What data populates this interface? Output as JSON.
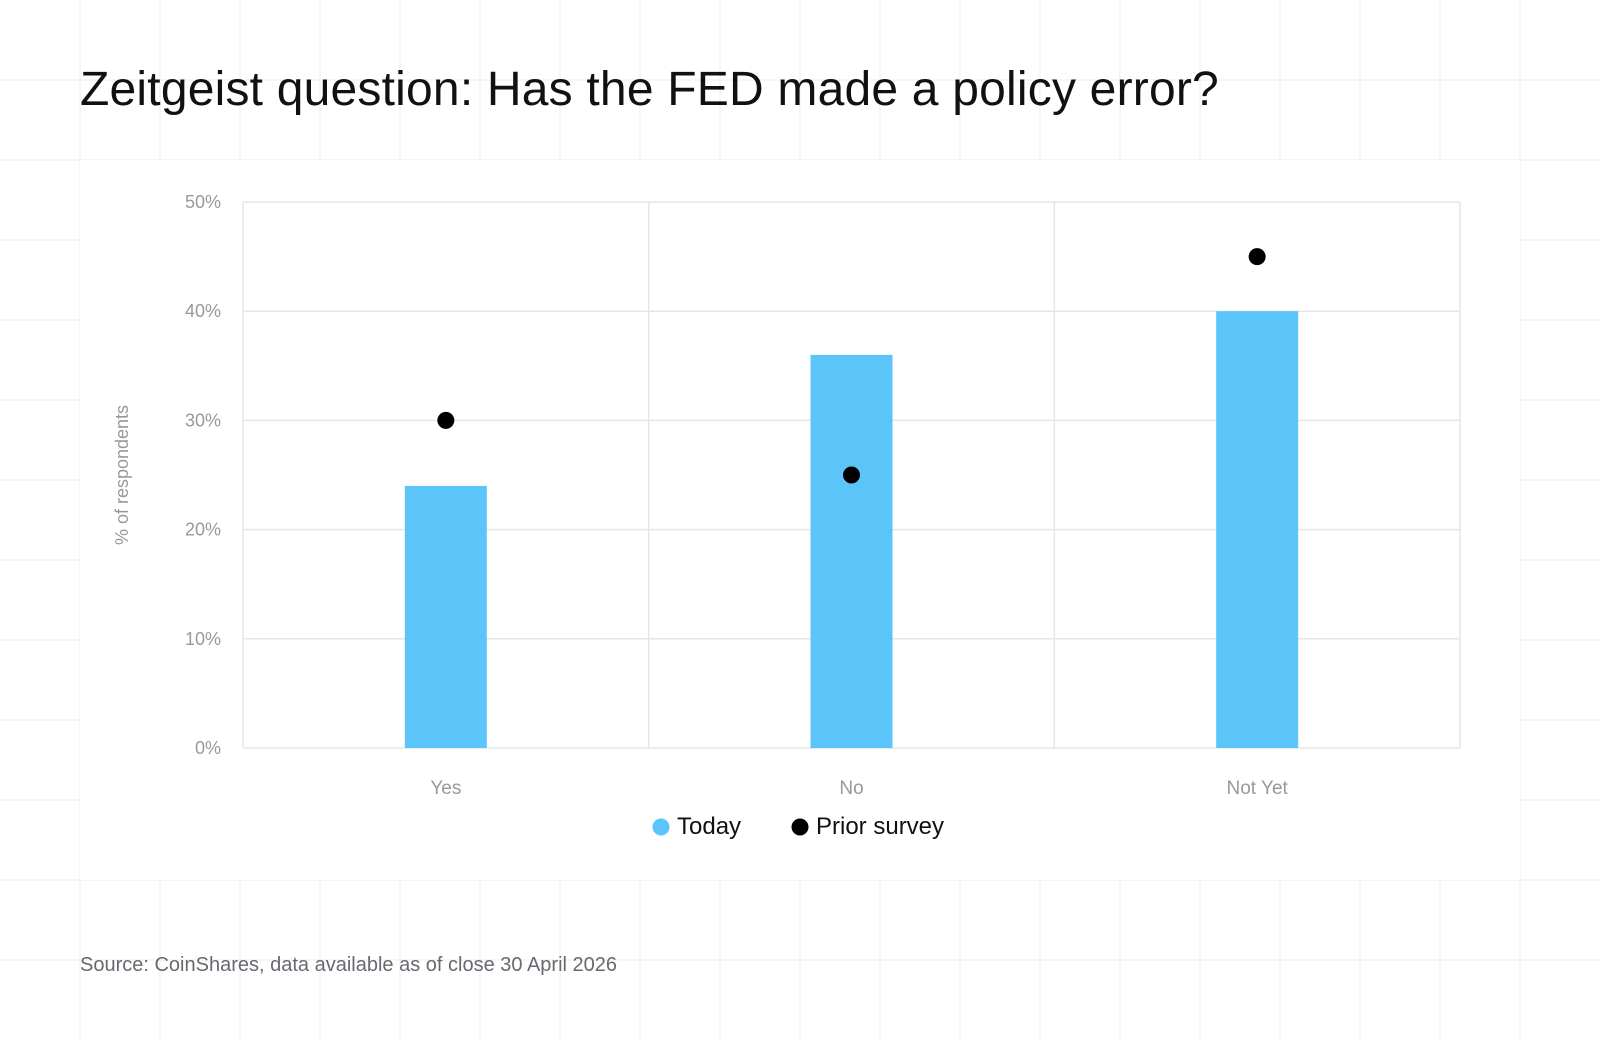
{
  "title": "Zeitgeist question: Has the FED made a policy error?",
  "source": "Source: CoinShares, data available as of close 30 April 2026",
  "colors": {
    "today": "#5bc4f8",
    "prior": "#000000",
    "grid": "#e6e6e6",
    "axis_text": "#999999"
  },
  "chart_data": {
    "type": "bar",
    "categories": [
      "Yes",
      "No",
      "Not Yet"
    ],
    "series": [
      {
        "name": "Today",
        "type": "bar",
        "values": [
          24,
          36,
          40
        ]
      },
      {
        "name": "Prior survey",
        "type": "scatter",
        "values": [
          30,
          25,
          45
        ]
      }
    ],
    "ylabel": "% of respondents",
    "xlabel": "",
    "ylim": [
      0,
      50
    ],
    "yticks": [
      "0%",
      "10%",
      "20%",
      "30%",
      "40%",
      "50%"
    ],
    "grid": true,
    "legend": "bottom-center"
  }
}
